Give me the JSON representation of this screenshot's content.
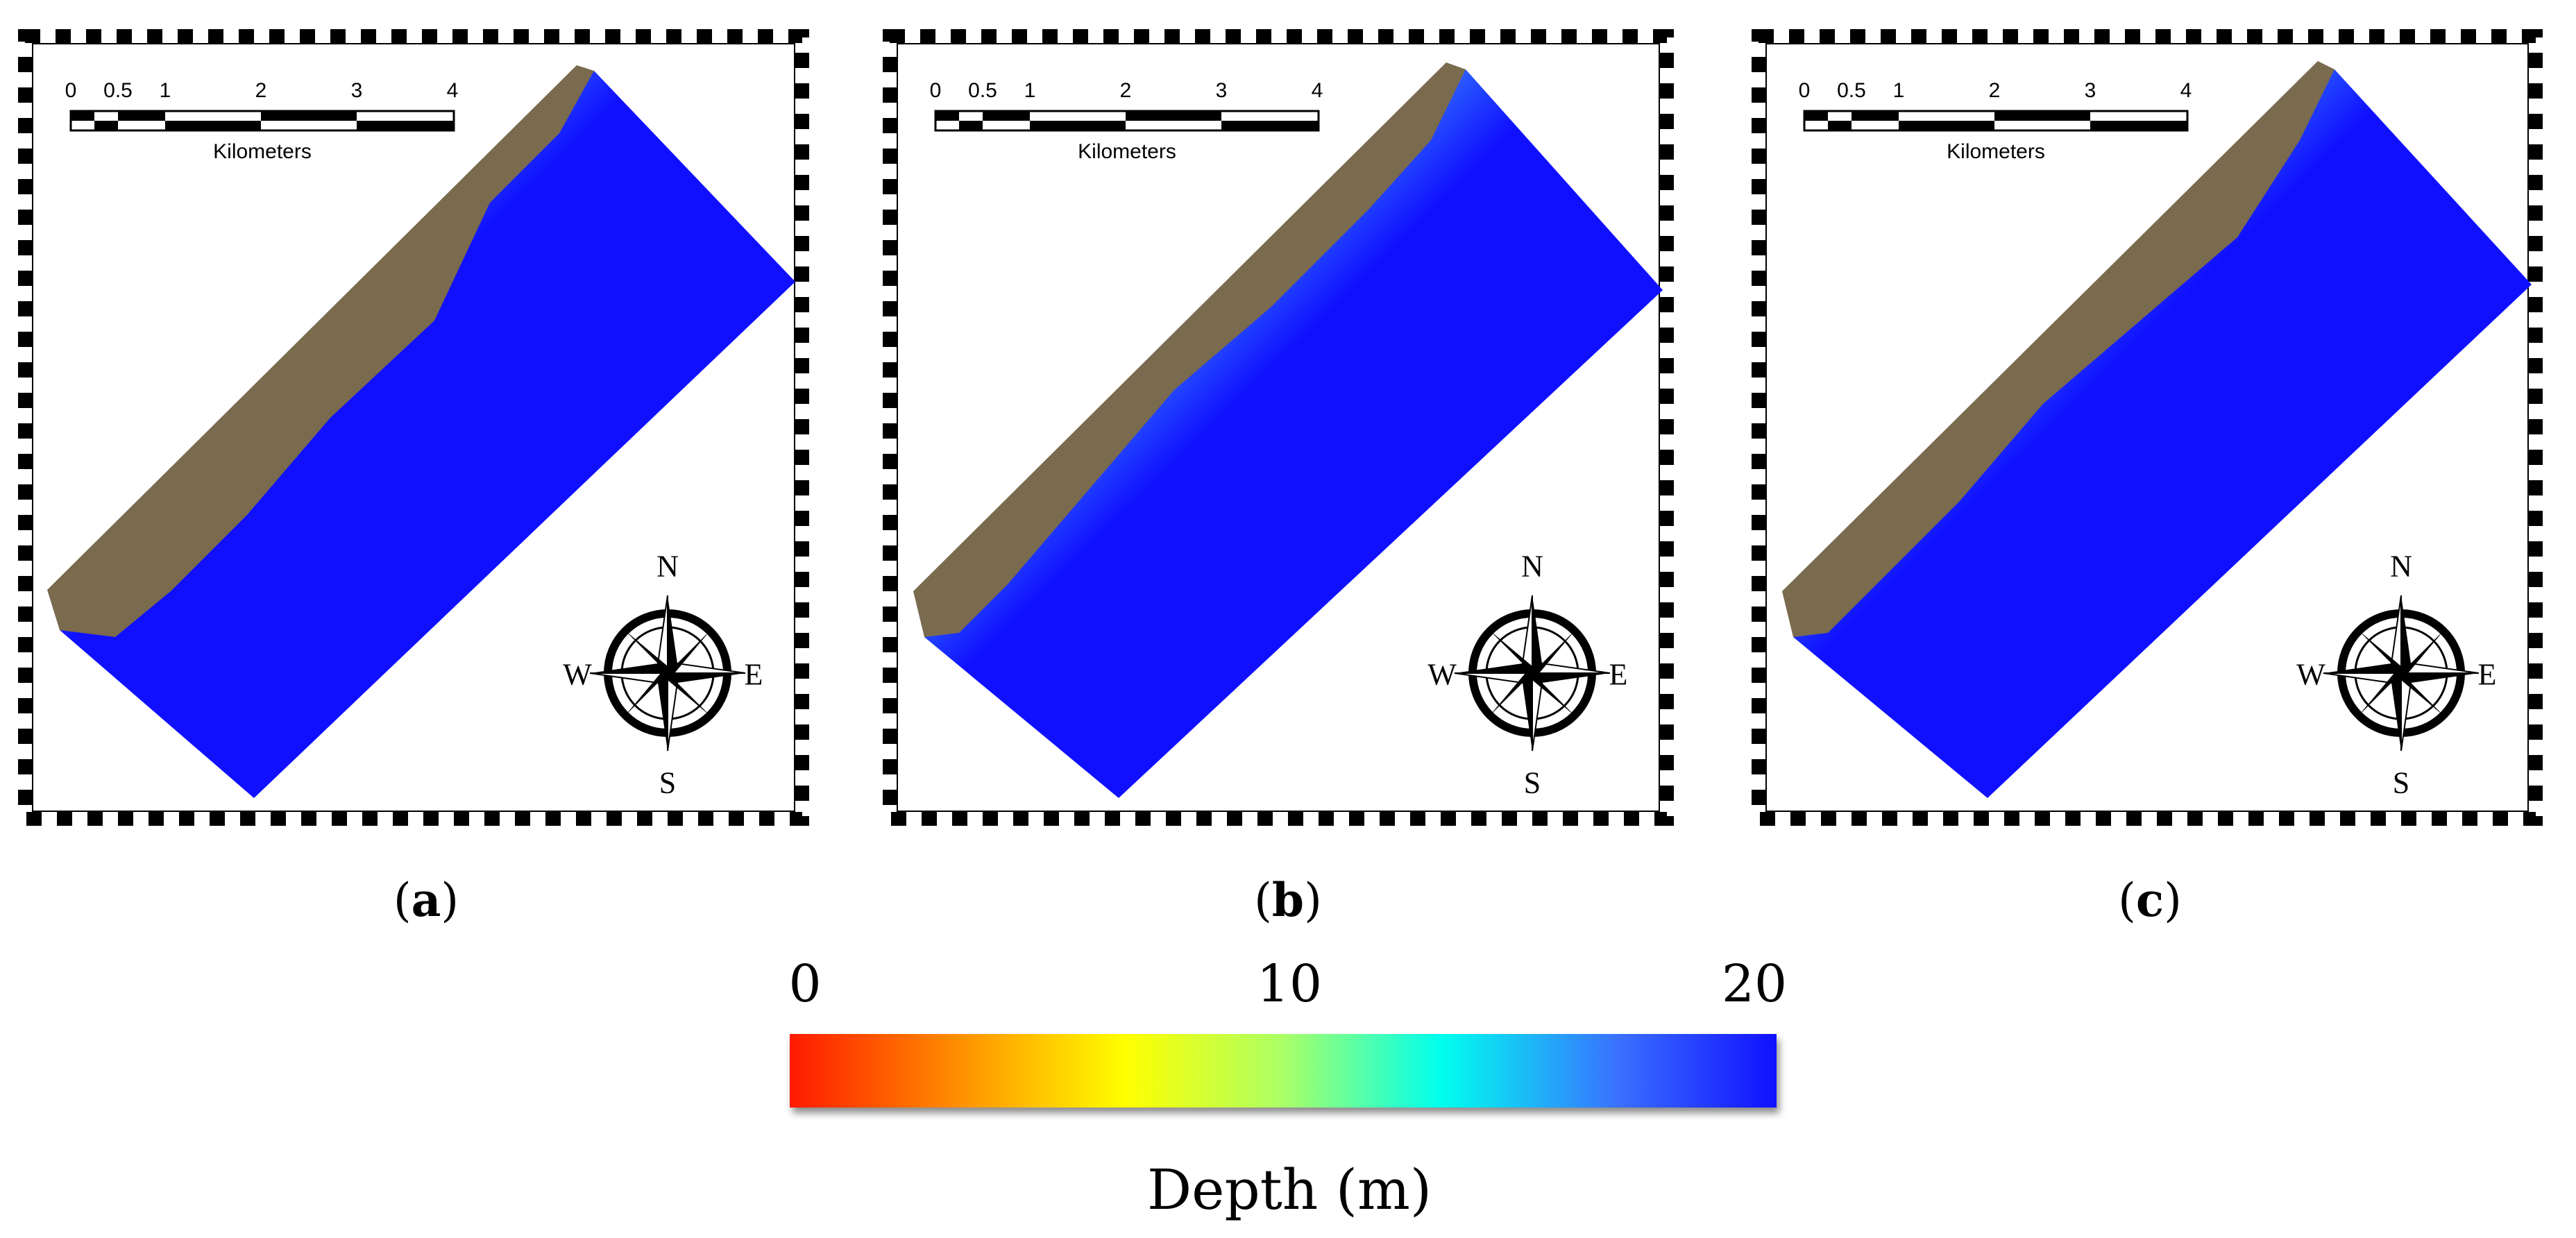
{
  "panels": [
    {
      "caption_letter": "a"
    },
    {
      "caption_letter": "b"
    },
    {
      "caption_letter": "c"
    }
  ],
  "scale_bar": {
    "ticks": [
      "0",
      "0.5",
      "1",
      "2",
      "3",
      "4"
    ],
    "unit": "Kilometers"
  },
  "compass": {
    "north": "N",
    "south": "S",
    "east": "E",
    "west": "W"
  },
  "colorbar": {
    "ticks": [
      "0",
      "10",
      "20"
    ],
    "title": "Depth (m)",
    "range": [
      0,
      20
    ],
    "colors": {
      "shallow": "#ff1a00",
      "mid": "#ffff00",
      "deep": "#1010ff"
    }
  },
  "colors": {
    "land": "#7a6a4e",
    "deep_water": "#1010ff"
  }
}
